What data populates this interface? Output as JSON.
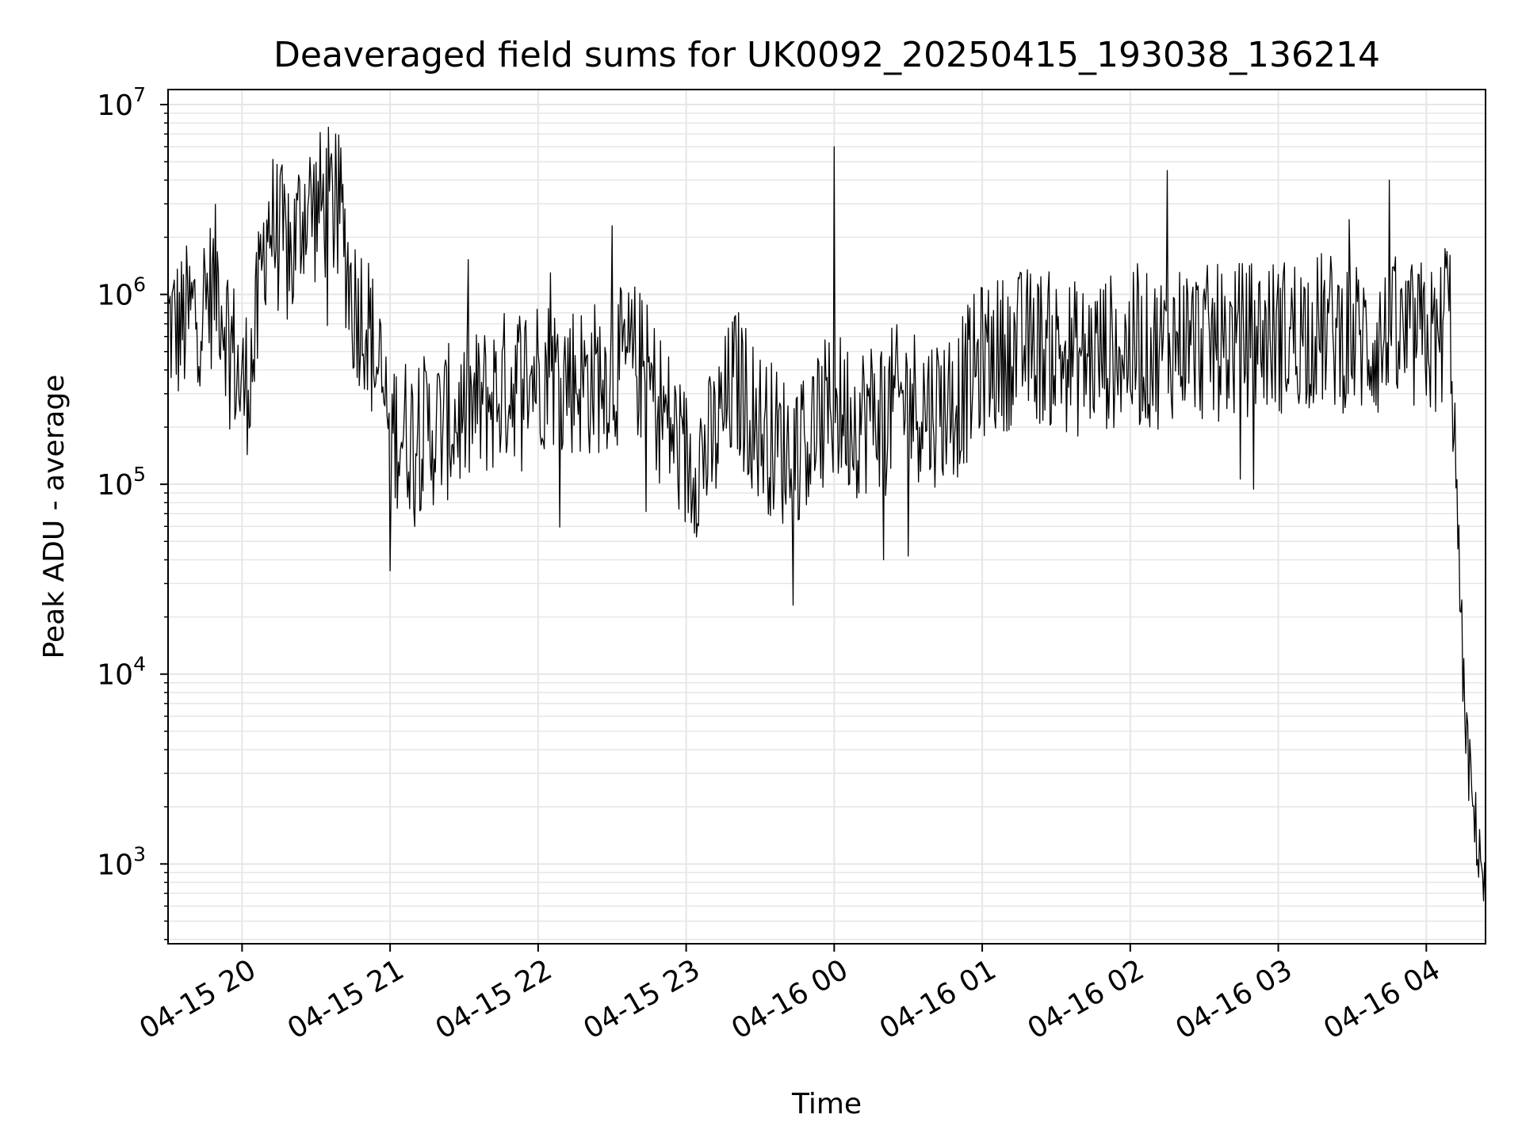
{
  "chart_data": {
    "type": "line",
    "title": "Deaveraged field sums for UK0092_20250415_193038_136214",
    "xlabel": "Time",
    "ylabel": "Peak ADU - average",
    "yscale": "log",
    "ylim": [
      380,
      12000000
    ],
    "xlim": [
      "2025-04-15 19:30",
      "2025-04-16 04:24"
    ],
    "xticks": [
      {
        "time": "2025-04-15 20:00",
        "label": "04-15 20"
      },
      {
        "time": "2025-04-15 21:00",
        "label": "04-15 21"
      },
      {
        "time": "2025-04-15 22:00",
        "label": "04-15 22"
      },
      {
        "time": "2025-04-15 23:00",
        "label": "04-15 23"
      },
      {
        "time": "2025-04-16 00:00",
        "label": "04-16 00"
      },
      {
        "time": "2025-04-16 01:00",
        "label": "04-16 01"
      },
      {
        "time": "2025-04-16 02:00",
        "label": "04-16 02"
      },
      {
        "time": "2025-04-16 03:00",
        "label": "04-16 03"
      },
      {
        "time": "2025-04-16 04:00",
        "label": "04-16 04"
      }
    ],
    "yticks": [
      {
        "value": 1000,
        "base": "10",
        "exp": "3"
      },
      {
        "value": 10000,
        "base": "10",
        "exp": "4"
      },
      {
        "value": 100000,
        "base": "10",
        "exp": "5"
      },
      {
        "value": 1000000,
        "base": "10",
        "exp": "6"
      },
      {
        "value": 10000000,
        "base": "10",
        "exp": "7"
      }
    ],
    "grid": true,
    "line_color": "#000000",
    "grid_color": "#e6e6e6",
    "series": [
      {
        "points": [
          [
            "2025-04-15 19:30",
            700000
          ],
          [
            "2025-04-15 19:35",
            650000
          ],
          [
            "2025-04-15 19:40",
            800000
          ],
          [
            "2025-04-15 19:45",
            900000
          ],
          [
            "2025-04-15 19:50",
            1200000
          ],
          [
            "2025-04-15 19:55",
            600000
          ],
          [
            "2025-04-15 20:00",
            300000
          ],
          [
            "2025-04-15 20:05",
            500000
          ],
          [
            "2025-04-15 20:10",
            2500000
          ],
          [
            "2025-04-15 20:15",
            2000000
          ],
          [
            "2025-04-15 20:20",
            1500000
          ],
          [
            "2025-04-15 20:25",
            3000000
          ],
          [
            "2025-04-15 20:30",
            2800000
          ],
          [
            "2025-04-15 20:35",
            3000000
          ],
          [
            "2025-04-15 20:40",
            2600000
          ],
          [
            "2025-04-15 20:45",
            900000
          ],
          [
            "2025-04-15 20:50",
            800000
          ],
          [
            "2025-04-15 20:55",
            400000
          ],
          [
            "2025-04-15 21:00",
            200000
          ],
          [
            "2025-04-15 21:10",
            180000
          ],
          [
            "2025-04-15 21:20",
            200000
          ],
          [
            "2025-04-15 21:30",
            230000
          ],
          [
            "2025-04-15 21:40",
            280000
          ],
          [
            "2025-04-15 21:50",
            350000
          ],
          [
            "2025-04-15 22:00",
            400000
          ],
          [
            "2025-04-15 22:10",
            380000
          ],
          [
            "2025-04-15 22:20",
            350000
          ],
          [
            "2025-04-15 22:30",
            400000
          ],
          [
            "2025-04-15 22:40",
            450000
          ],
          [
            "2025-04-15 22:50",
            250000
          ],
          [
            "2025-04-15 23:00",
            130000
          ],
          [
            "2025-04-15 23:10",
            150000
          ],
          [
            "2025-04-15 23:20",
            350000
          ],
          [
            "2025-04-15 23:30",
            200000
          ],
          [
            "2025-04-15 23:40",
            150000
          ],
          [
            "2025-04-15 23:50",
            180000
          ],
          [
            "2025-04-16 00:00",
            250000
          ],
          [
            "2025-04-16 00:10",
            220000
          ],
          [
            "2025-04-16 00:20",
            250000
          ],
          [
            "2025-04-16 00:30",
            280000
          ],
          [
            "2025-04-16 00:40",
            250000
          ],
          [
            "2025-04-16 00:50",
            280000
          ],
          [
            "2025-04-16 01:00",
            450000
          ],
          [
            "2025-04-16 01:10",
            500000
          ],
          [
            "2025-04-16 01:20",
            550000
          ],
          [
            "2025-04-16 01:30",
            500000
          ],
          [
            "2025-04-16 01:40",
            450000
          ],
          [
            "2025-04-16 01:50",
            500000
          ],
          [
            "2025-04-16 02:00",
            500000
          ],
          [
            "2025-04-16 02:10",
            500000
          ],
          [
            "2025-04-16 02:20",
            600000
          ],
          [
            "2025-04-16 02:30",
            550000
          ],
          [
            "2025-04-16 02:40",
            550000
          ],
          [
            "2025-04-16 02:50",
            600000
          ],
          [
            "2025-04-16 03:00",
            600000
          ],
          [
            "2025-04-16 03:10",
            650000
          ],
          [
            "2025-04-16 03:20",
            650000
          ],
          [
            "2025-04-16 03:30",
            600000
          ],
          [
            "2025-04-16 03:40",
            550000
          ],
          [
            "2025-04-16 03:50",
            550000
          ],
          [
            "2025-04-16 04:00",
            600000
          ],
          [
            "2025-04-16 04:05",
            500000
          ],
          [
            "2025-04-16 04:08",
            1000000
          ],
          [
            "2025-04-16 04:10",
            700000
          ],
          [
            "2025-04-16 04:12",
            100000
          ],
          [
            "2025-04-16 04:14",
            20000
          ],
          [
            "2025-04-16 04:16",
            5000
          ],
          [
            "2025-04-16 04:18",
            2500
          ],
          [
            "2025-04-16 04:20",
            1500
          ],
          [
            "2025-04-16 04:22",
            1200
          ],
          [
            "2025-04-16 04:24",
            600
          ]
        ],
        "spikes": [
          [
            "2025-04-15 20:38",
            7000000
          ],
          [
            "2025-04-16 00:00",
            6000000
          ],
          [
            "2025-04-16 02:15",
            4500000
          ],
          [
            "2025-04-16 03:45",
            4000000
          ],
          [
            "2025-04-15 21:00",
            35000
          ],
          [
            "2025-04-16 00:20",
            40000
          ],
          [
            "2025-04-15 22:05",
            1300000
          ],
          [
            "2025-04-15 22:30",
            2300000
          ]
        ]
      }
    ]
  }
}
